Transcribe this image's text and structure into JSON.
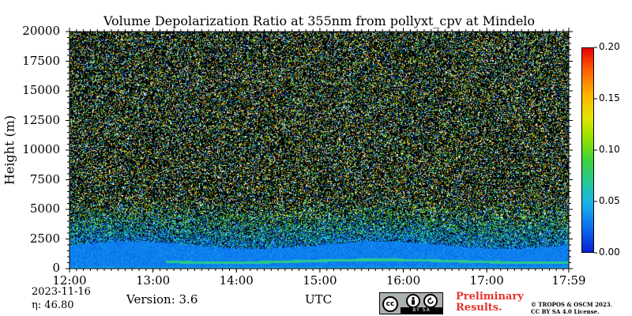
{
  "chart_data": {
    "type": "heatmap",
    "title": "Volume Depolarization Ratio at 355nm from pollyxt_cpv at Mindelo",
    "xlabel": "UTC",
    "ylabel": "Height (m)",
    "x_tick_labels": [
      "12:00",
      "13:00",
      "14:00",
      "15:00",
      "16:00",
      "17:00",
      "17:59"
    ],
    "x_ticks_hours": [
      12.0,
      13.0,
      14.0,
      15.0,
      16.0,
      17.0,
      17.983
    ],
    "xlim_hours": [
      12.0,
      17.983
    ],
    "y_ticks": [
      0,
      2500,
      5000,
      7500,
      10000,
      12500,
      15000,
      17500,
      20000
    ],
    "ylim": [
      0,
      20000
    ],
    "colorbar": {
      "range": [
        0.0,
        0.2
      ],
      "ticks": [
        0.0,
        0.05,
        0.1,
        0.15,
        0.2
      ],
      "tick_labels": [
        "0.00",
        "0.05",
        "0.10",
        "0.15",
        "0.20"
      ]
    },
    "features": {
      "boundary_layer_top_m": 2000,
      "noisy_region_above_m": 3500,
      "elevated_layer_height_m": 650,
      "elevated_layer_start_hour": 13.15,
      "typical_boundary_layer_value": 0.03,
      "elevated_layer_value": 0.07
    }
  },
  "footer": {
    "date": "2023-11-16",
    "eta": "η:  46.80",
    "version": "Version: 3.6",
    "cc_badge_text": "BY  SA",
    "cc_symbol": "cc",
    "preliminary_line1": "Preliminary",
    "preliminary_line2": "Results.",
    "copyright_line1": "© TROPOS & OSCM 2023.",
    "copyright_line2": "CC BY SA 4.0 License."
  },
  "colors": {
    "accent_red": "#e8322c",
    "badge_gray": "#aab2ab"
  }
}
